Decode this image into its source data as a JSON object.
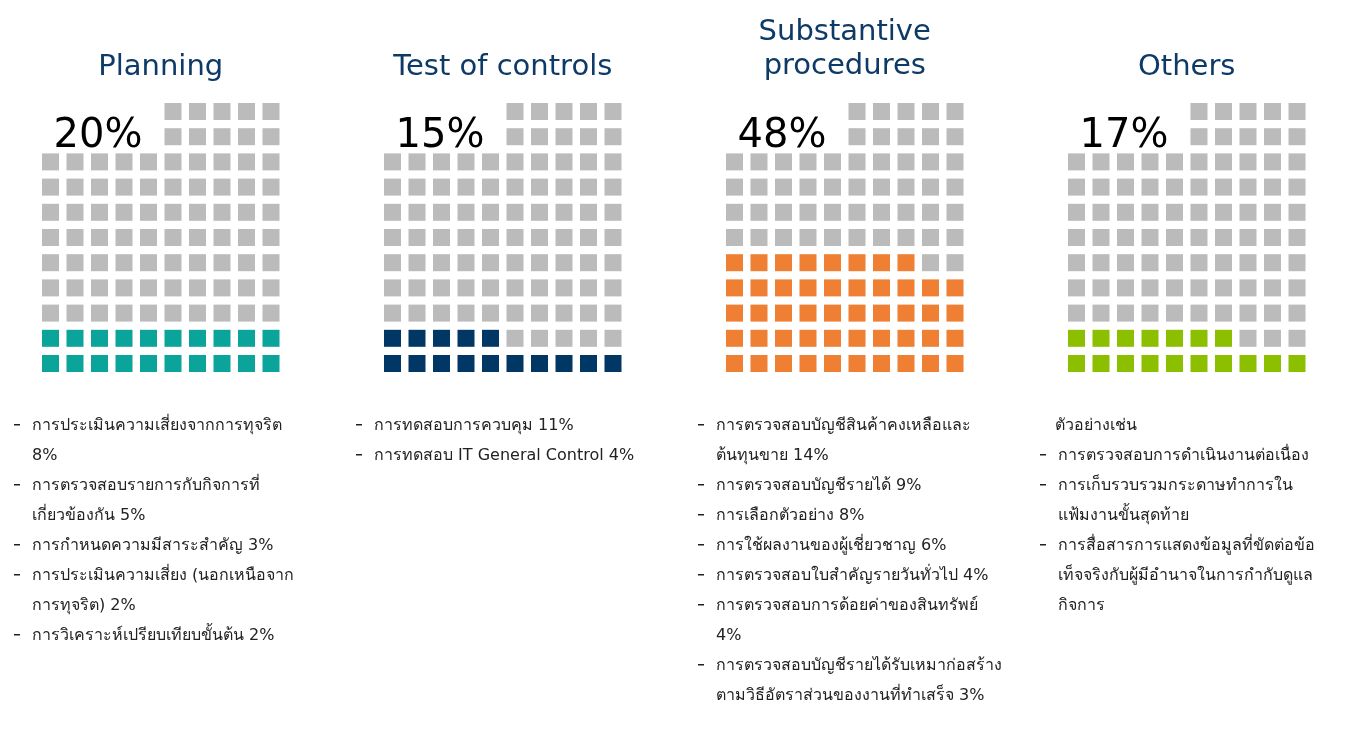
{
  "chart_data": [
    {
      "type": "other",
      "title": "Planning",
      "values": [
        20
      ],
      "value_labels": [
        "20%"
      ],
      "color": "#0ba49a",
      "annotations": [
        "การประเมินความเสี่ยงจากการทุจริต 8%",
        "การตรวจสอบรายการกับกิจการที่เกี่ยวข้องกัน 5%",
        "การกำหนดความมีสาระสำคัญ 3%",
        "การประเมินความเสี่ยง (นอกเหนือจากการทุจริต) 2%",
        "การวิเคราะห์เปรียบเทียบขั้นต้น 2%"
      ]
    },
    {
      "type": "other",
      "title": "Test of controls",
      "values": [
        15
      ],
      "value_labels": [
        "15%"
      ],
      "color": "#003764",
      "annotations": [
        "การทดสอบการควบคุม 11%",
        "การทดสอบ IT General Control 4%"
      ]
    },
    {
      "type": "other",
      "title": "Substantive procedures",
      "values": [
        48
      ],
      "value_labels": [
        "48%"
      ],
      "color": "#ee7f33",
      "annotations": [
        "การตรวจสอบบัญชีสินค้าคงเหลือและต้นทุนขาย 14%",
        "การตรวจสอบบัญชีรายได้ 9%",
        "การเลือกตัวอย่าง 8%",
        "การใช้ผลงานของผู้เชี่ยวชาญ 6%",
        "การตรวจสอบใบสำคัญรายวันทั่วไป 4%",
        "การตรวจสอบการด้อยค่าของสินทรัพย์ 4%",
        "การตรวจสอบบัญชีรายได้รับเหมาก่อสร้างตามวิธีอัตราส่วนของงานที่ทำเสร็จ 3%"
      ]
    },
    {
      "type": "other",
      "title": "Others",
      "subtitle": "ตัวอย่างเช่น",
      "values": [
        17
      ],
      "value_labels": [
        "17%"
      ],
      "color": "#8bbf00",
      "annotations": [
        "การตรวจสอบการดำเนินงานต่อเนื่อง",
        "การเก็บรวบรวมกระดาษทำการในแฟ้มงานขั้นสุดท้าย",
        "การสื่อสารการแสดงข้อมูลที่ขัดต่อข้อเท็จจริงกับผู้มีอำนาจในการกำกับดูแลกิจการ"
      ]
    }
  ]
}
